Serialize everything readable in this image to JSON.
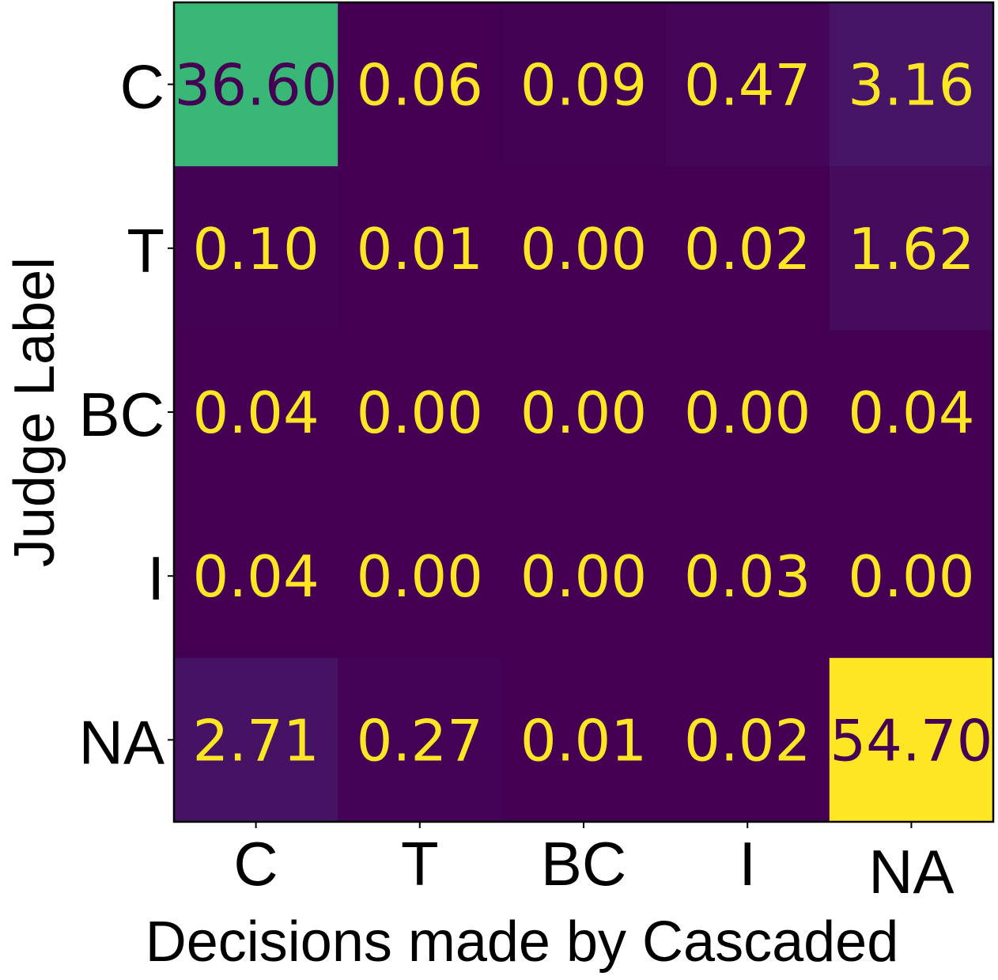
{
  "chart_data": {
    "type": "heatmap",
    "title": "",
    "xlabel": "Decisions made by Cascaded",
    "ylabel": "Judge Label",
    "x_categories": [
      "C",
      "T",
      "BC",
      "I",
      "NA"
    ],
    "y_categories": [
      "C",
      "T",
      "BC",
      "I",
      "NA"
    ],
    "values": [
      [
        36.6,
        0.06,
        0.09,
        0.47,
        3.16
      ],
      [
        0.1,
        0.01,
        0.0,
        0.02,
        1.62
      ],
      [
        0.04,
        0.0,
        0.0,
        0.0,
        0.04
      ],
      [
        0.04,
        0.0,
        0.0,
        0.03,
        0.0
      ],
      [
        2.71,
        0.27,
        0.01,
        0.02,
        54.7
      ]
    ],
    "value_format": "2 decimals",
    "colormap": "viridis",
    "vmin": 0.0,
    "vmax": 54.7,
    "colors": {
      "low_text": "#fde725",
      "high_text": "#440154"
    }
  }
}
